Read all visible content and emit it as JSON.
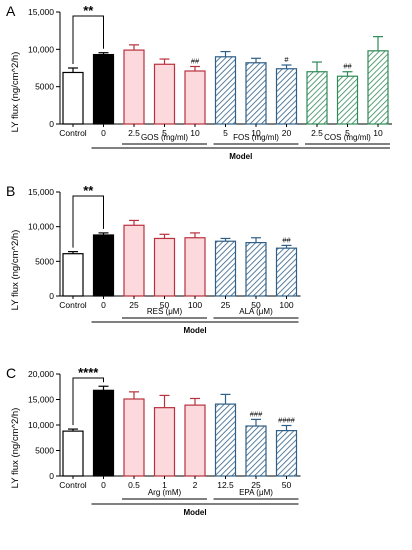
{
  "chart_data": [
    {
      "panel": "A",
      "type": "bar",
      "ylabel": "LY flux (ng/cm^2/h)",
      "ylim": [
        0,
        15000
      ],
      "yticks": [
        0,
        5000,
        10000,
        15000
      ],
      "ytick_labels": [
        "0",
        "5000",
        "10,000",
        "15,000"
      ],
      "categories": [
        "Control",
        "0",
        "2.5",
        "5",
        "10",
        "5",
        "10",
        "20",
        "2.5",
        "5",
        "10"
      ],
      "values": [
        6900,
        9300,
        9900,
        8000,
        7100,
        9000,
        8200,
        7400,
        7000,
        6400,
        9800
      ],
      "errors": [
        600,
        250,
        700,
        700,
        600,
        700,
        600,
        500,
        1300,
        600,
        1900
      ],
      "annotations": [
        "",
        "",
        "",
        "",
        "##",
        "",
        "",
        "#",
        "",
        "##",
        ""
      ],
      "bracket": {
        "from": 0,
        "to": 1,
        "label": "**"
      },
      "groups": [
        {
          "label": "GOS (mg/ml)",
          "from": 2,
          "to": 4
        },
        {
          "label": "FOS (mg/ml)",
          "from": 5,
          "to": 7
        },
        {
          "label": "COS (mg/ml)",
          "from": 8,
          "to": 10
        }
      ],
      "model": {
        "label": "Model",
        "from": 1,
        "to": 10
      },
      "styles": [
        "control",
        "model",
        "gos",
        "gos",
        "gos",
        "fos",
        "fos",
        "fos",
        "cos",
        "cos",
        "cos"
      ]
    },
    {
      "panel": "B",
      "type": "bar",
      "ylabel": "LY flux (ng/cm^2/h)",
      "ylim": [
        0,
        15000
      ],
      "yticks": [
        0,
        5000,
        10000,
        15000
      ],
      "ytick_labels": [
        "0",
        "5000",
        "10,000",
        "15,000"
      ],
      "categories": [
        "Control",
        "0",
        "25",
        "50",
        "100",
        "25",
        "50",
        "100"
      ],
      "values": [
        6100,
        8800,
        10200,
        8300,
        8400,
        7900,
        7700,
        6900
      ],
      "errors": [
        300,
        300,
        700,
        600,
        700,
        400,
        700,
        400
      ],
      "annotations": [
        "",
        "",
        "",
        "",
        "",
        "",
        "",
        "##"
      ],
      "bracket": {
        "from": 0,
        "to": 1,
        "label": "**"
      },
      "groups": [
        {
          "label": "RES (μM)",
          "from": 2,
          "to": 4
        },
        {
          "label": "ALA (μM)",
          "from": 5,
          "to": 7
        }
      ],
      "model": {
        "label": "Model",
        "from": 1,
        "to": 7
      },
      "styles": [
        "control",
        "model",
        "gos",
        "gos",
        "gos",
        "fos",
        "fos",
        "fos"
      ]
    },
    {
      "panel": "C",
      "type": "bar",
      "ylabel": "LY flux (ng/cm^2/h)",
      "ylim": [
        0,
        20000
      ],
      "yticks": [
        0,
        5000,
        10000,
        15000,
        20000
      ],
      "ytick_labels": [
        "0",
        "5000",
        "10,000",
        "15,000",
        "20,000"
      ],
      "categories": [
        "Control",
        "0",
        "0.5",
        "1",
        "2",
        "12.5",
        "25",
        "50"
      ],
      "values": [
        8800,
        16800,
        15100,
        13400,
        13900,
        14100,
        9800,
        8900
      ],
      "errors": [
        400,
        800,
        1400,
        2400,
        1300,
        1900,
        1300,
        1000
      ],
      "annotations": [
        "",
        "",
        "",
        "",
        "",
        "",
        "###",
        "####"
      ],
      "bracket": {
        "from": 0,
        "to": 1,
        "label": "****"
      },
      "groups": [
        {
          "label": "Arg (mM)",
          "from": 2,
          "to": 4
        },
        {
          "label": "EPA (μM)",
          "from": 5,
          "to": 7
        }
      ],
      "model": {
        "label": "Model",
        "from": 1,
        "to": 7
      },
      "styles": [
        "control",
        "model",
        "gos",
        "gos",
        "gos",
        "fos",
        "fos",
        "fos"
      ]
    }
  ],
  "colors": {
    "gos_fill": "#fbd9dc",
    "gos_stroke": "#b9313d",
    "fos_stroke": "#2f5f86",
    "cos_stroke": "#2f8a57",
    "model_fill": "#000000"
  }
}
